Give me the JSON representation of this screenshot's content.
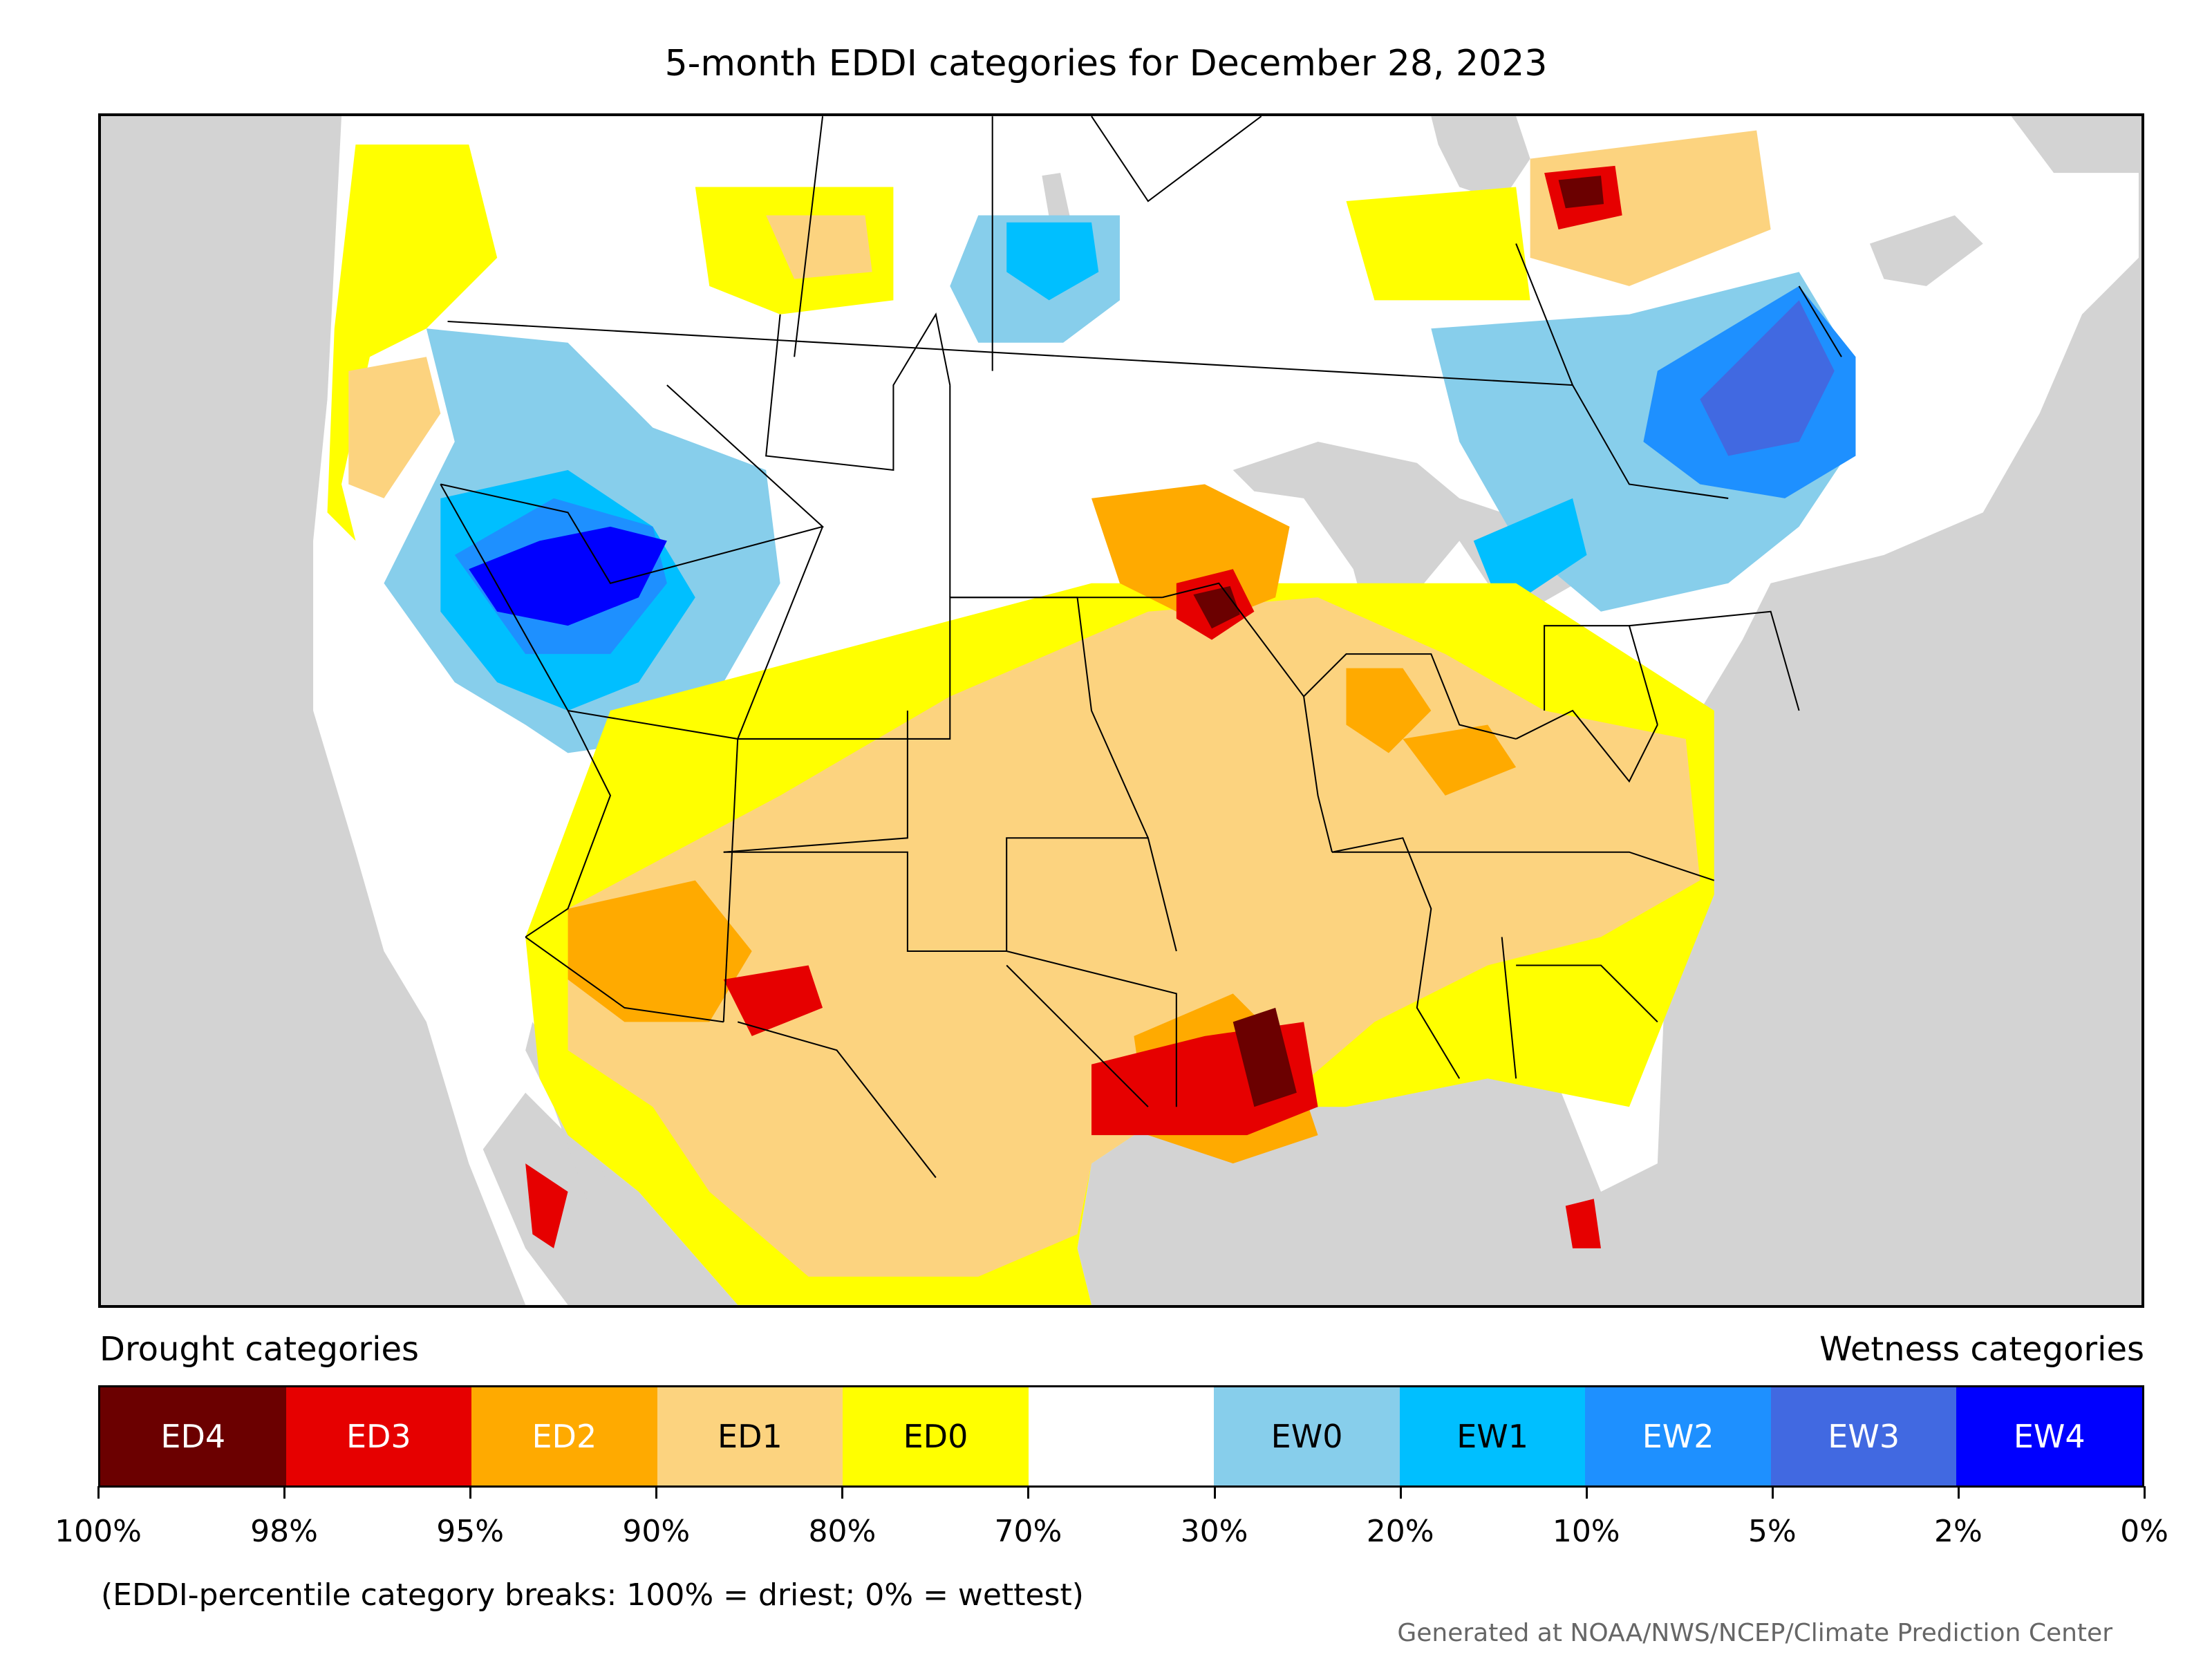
{
  "title": "5-month EDDI categories for December 28, 2023",
  "legend": {
    "drought_title": "Drought categories",
    "wetness_title": "Wetness categories",
    "categories": [
      {
        "label": "ED4",
        "color": "#6b0000",
        "text_color": "#ffffff"
      },
      {
        "label": "ED3",
        "color": "#e60000",
        "text_color": "#ffffff"
      },
      {
        "label": "ED2",
        "color": "#ffaa00",
        "text_color": "#ffffff"
      },
      {
        "label": "ED1",
        "color": "#fcd37f",
        "text_color": "#000000"
      },
      {
        "label": "ED0",
        "color": "#ffff00",
        "text_color": "#000000"
      },
      {
        "label": "",
        "color": "#ffffff",
        "text_color": "#000000"
      },
      {
        "label": "EW0",
        "color": "#87ceeb",
        "text_color": "#000000"
      },
      {
        "label": "EW1",
        "color": "#00bfff",
        "text_color": "#000000"
      },
      {
        "label": "EW2",
        "color": "#1e90ff",
        "text_color": "#ffffff"
      },
      {
        "label": "EW3",
        "color": "#4169e1",
        "text_color": "#ffffff"
      },
      {
        "label": "EW4",
        "color": "#0000ff",
        "text_color": "#ffffff"
      }
    ],
    "breaks": [
      "100%",
      "98%",
      "95%",
      "90%",
      "80%",
      "70%",
      "30%",
      "20%",
      "10%",
      "5%",
      "2%",
      "0%"
    ]
  },
  "note": "(EDDI-percentile category breaks: 100% = driest; 0% = wettest)",
  "credit": "Generated at NOAA/NWS/NCEP/Climate Prediction Center",
  "map": {
    "background_color": "#d3d3d3",
    "land_color": "#ffffff",
    "boundary_color": "#000000"
  }
}
